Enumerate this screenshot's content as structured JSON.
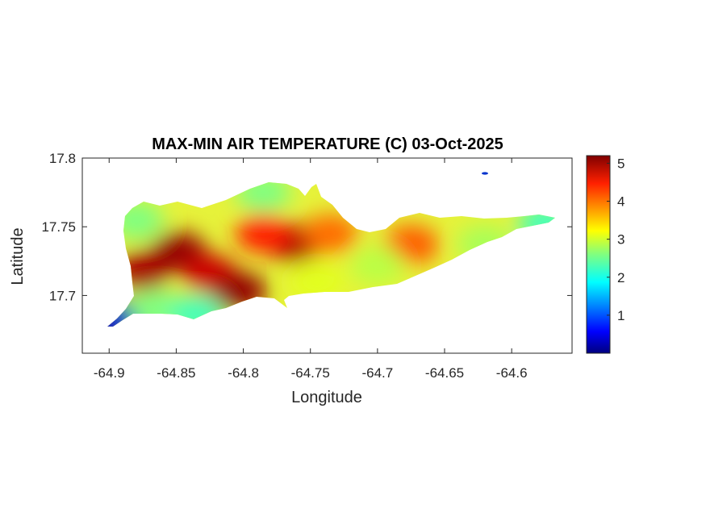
{
  "chart_data": {
    "type": "heatmap",
    "title": "MAX-MIN AIR TEMPERATURE (C) 03-Oct-2025",
    "xlabel": "Longitude",
    "ylabel": "Latitude",
    "xlim": [
      -64.92,
      -64.555
    ],
    "ylim": [
      17.658,
      17.8
    ],
    "xticks": [
      -64.9,
      -64.85,
      -64.8,
      -64.75,
      -64.7,
      -64.65,
      -64.6
    ],
    "xtick_labels": [
      "-64.9",
      "-64.85",
      "-64.8",
      "-64.75",
      "-64.7",
      "-64.65",
      "-64.6"
    ],
    "yticks": [
      17.7,
      17.75,
      17.8
    ],
    "ytick_labels": [
      "17.7",
      "17.75",
      "17.8"
    ],
    "colorbar": {
      "colormap": "jet",
      "range": [
        0,
        5.2
      ],
      "ticks": [
        1,
        2,
        3,
        4,
        5
      ],
      "tick_labels": [
        "1",
        "2",
        "3",
        "4",
        "5"
      ]
    },
    "grid": false,
    "hotspots": [
      {
        "lon": -64.875,
        "lat": 17.718,
        "value": 5.0
      },
      {
        "lon": -64.848,
        "lat": 17.732,
        "value": 5.1
      },
      {
        "lon": -64.825,
        "lat": 17.716,
        "value": 4.8
      },
      {
        "lon": -64.803,
        "lat": 17.703,
        "value": 5.1
      },
      {
        "lon": -64.762,
        "lat": 17.738,
        "value": 5.0
      },
      {
        "lon": -64.785,
        "lat": 17.745,
        "value": 4.4
      },
      {
        "lon": -64.735,
        "lat": 17.745,
        "value": 4.0
      },
      {
        "lon": -64.675,
        "lat": 17.737,
        "value": 4.1
      },
      {
        "lon": -64.745,
        "lat": 17.71,
        "value": 3.1
      },
      {
        "lon": -64.7,
        "lat": 17.722,
        "value": 2.9
      },
      {
        "lon": -64.62,
        "lat": 17.737,
        "value": 2.8
      },
      {
        "lon": -64.575,
        "lat": 17.752,
        "value": 2.3
      },
      {
        "lon": -64.895,
        "lat": 17.682,
        "value": 0.4
      },
      {
        "lon": -64.865,
        "lat": 17.69,
        "value": 2.6
      },
      {
        "lon": -64.835,
        "lat": 17.686,
        "value": 2.3
      },
      {
        "lon": -64.785,
        "lat": 17.775,
        "value": 2.6
      },
      {
        "lon": -64.88,
        "lat": 17.755,
        "value": 2.6
      },
      {
        "lon": -64.623,
        "lat": 17.79,
        "value": 0.8
      }
    ]
  }
}
